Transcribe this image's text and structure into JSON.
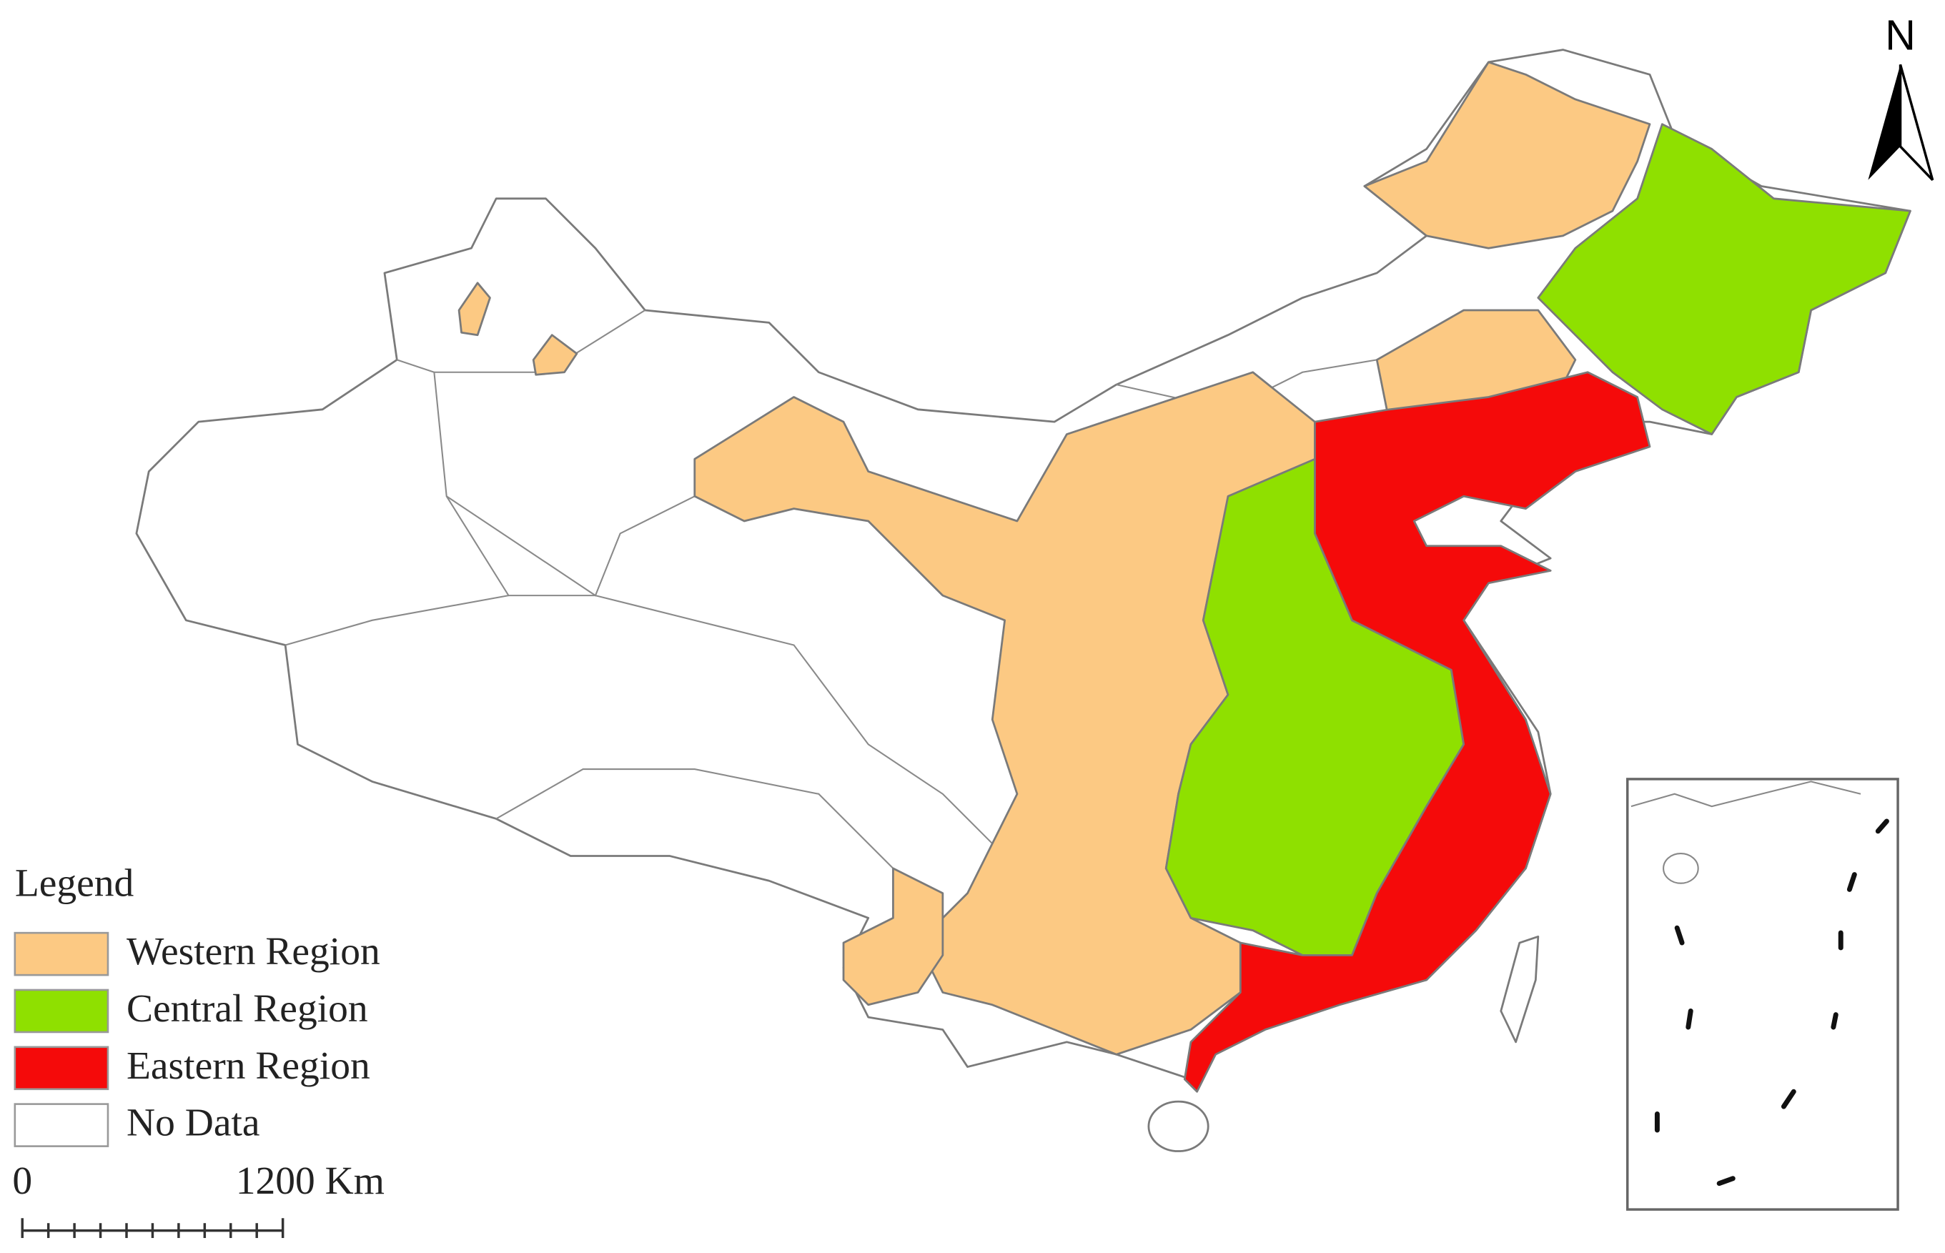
{
  "north_label": "N",
  "legend": {
    "title": "Legend",
    "items": [
      {
        "label": "Western Region",
        "color": "#fcc983"
      },
      {
        "label": "Central Region",
        "color": "#8fe000"
      },
      {
        "label": "Eastern Region",
        "color": "#f50a0a"
      },
      {
        "label": "No Data",
        "color": "#ffffff"
      }
    ]
  },
  "scale_bar": {
    "start_label": "0",
    "end_label": "1200 Km"
  }
}
